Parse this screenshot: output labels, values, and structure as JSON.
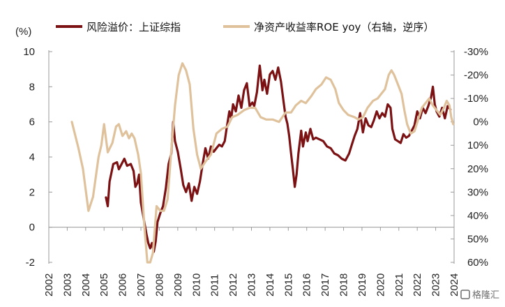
{
  "chart_data": {
    "type": "line",
    "unit_left": "(%)",
    "y_left": {
      "min": -2,
      "max": 10,
      "ticks": [
        -2,
        0,
        2,
        4,
        6,
        8,
        10
      ],
      "tick_labels": [
        "-2",
        "0",
        "2",
        "4",
        "6",
        "8",
        "10"
      ]
    },
    "y_right": {
      "inverted": true,
      "min": -30,
      "max": 60,
      "ticks": [
        -30,
        -20,
        -10,
        0,
        10,
        20,
        30,
        40,
        50,
        60
      ],
      "tick_labels": [
        "-30%",
        "-20%",
        "-10%",
        "0%",
        "10%",
        "20%",
        "30%",
        "40%",
        "50%",
        "60%"
      ]
    },
    "x": {
      "min": 2002,
      "max": 2024,
      "tick_labels": [
        "2002",
        "2003",
        "2004",
        "2005",
        "2006",
        "2007",
        "2008",
        "2009",
        "2010",
        "2011",
        "2012",
        "2013",
        "2014",
        "2015",
        "2016",
        "2017",
        "2018",
        "2019",
        "2020",
        "2021",
        "2022",
        "2023",
        "2024"
      ]
    },
    "legend_position": "top",
    "series": [
      {
        "name": "风险溢价：上证综指",
        "axis": "left",
        "color": "#7b1113",
        "points": [
          [
            2005.1,
            1.7
          ],
          [
            2005.2,
            1.2
          ],
          [
            2005.3,
            2.6
          ],
          [
            2005.5,
            3.6
          ],
          [
            2005.7,
            3.7
          ],
          [
            2005.8,
            3.3
          ],
          [
            2005.95,
            3.6
          ],
          [
            2006.1,
            3.9
          ],
          [
            2006.25,
            3.5
          ],
          [
            2006.45,
            3.6
          ],
          [
            2006.6,
            3.2
          ],
          [
            2006.7,
            2.3
          ],
          [
            2006.8,
            2.5
          ],
          [
            2006.9,
            3.0
          ],
          [
            2007.0,
            1.4
          ],
          [
            2007.1,
            0.8
          ],
          [
            2007.2,
            0.2
          ],
          [
            2007.3,
            -0.4
          ],
          [
            2007.4,
            -0.9
          ],
          [
            2007.5,
            -1.2
          ],
          [
            2007.6,
            -0.9
          ],
          [
            2007.7,
            -1.4
          ],
          [
            2007.8,
            -0.8
          ],
          [
            2007.9,
            0.3
          ],
          [
            2008.05,
            0.8
          ],
          [
            2008.2,
            1.2
          ],
          [
            2008.35,
            2.2
          ],
          [
            2008.5,
            3.6
          ],
          [
            2008.65,
            4.2
          ],
          [
            2008.75,
            6.0
          ],
          [
            2008.85,
            4.9
          ],
          [
            2009.0,
            4.3
          ],
          [
            2009.15,
            3.4
          ],
          [
            2009.3,
            2.4
          ],
          [
            2009.45,
            2.0
          ],
          [
            2009.6,
            2.5
          ],
          [
            2009.75,
            1.5
          ],
          [
            2009.9,
            2.3
          ],
          [
            2010.05,
            1.9
          ],
          [
            2010.2,
            2.6
          ],
          [
            2010.35,
            3.6
          ],
          [
            2010.5,
            4.5
          ],
          [
            2010.65,
            3.9
          ],
          [
            2010.8,
            4.6
          ],
          [
            2010.95,
            4.3
          ],
          [
            2011.1,
            4.5
          ],
          [
            2011.25,
            4.7
          ],
          [
            2011.4,
            4.6
          ],
          [
            2011.55,
            4.9
          ],
          [
            2011.65,
            5.6
          ],
          [
            2011.8,
            6.6
          ],
          [
            2011.9,
            6.2
          ],
          [
            2012.0,
            7.0
          ],
          [
            2012.15,
            6.6
          ],
          [
            2012.3,
            7.5
          ],
          [
            2012.45,
            6.8
          ],
          [
            2012.6,
            7.8
          ],
          [
            2012.75,
            8.2
          ],
          [
            2012.9,
            6.9
          ],
          [
            2013.05,
            7.1
          ],
          [
            2013.15,
            6.9
          ],
          [
            2013.3,
            7.7
          ],
          [
            2013.45,
            9.2
          ],
          [
            2013.6,
            7.8
          ],
          [
            2013.7,
            8.4
          ],
          [
            2013.85,
            7.6
          ],
          [
            2014.0,
            8.7
          ],
          [
            2014.15,
            8.9
          ],
          [
            2014.3,
            8.4
          ],
          [
            2014.45,
            9.1
          ],
          [
            2014.6,
            8.3
          ],
          [
            2014.75,
            7.1
          ],
          [
            2014.85,
            6.3
          ],
          [
            2014.95,
            5.9
          ],
          [
            2015.05,
            5.2
          ],
          [
            2015.15,
            4.2
          ],
          [
            2015.25,
            3.3
          ],
          [
            2015.35,
            2.3
          ],
          [
            2015.45,
            3.0
          ],
          [
            2015.55,
            4.2
          ],
          [
            2015.7,
            5.5
          ],
          [
            2015.8,
            4.6
          ],
          [
            2015.95,
            5.4
          ],
          [
            2016.05,
            4.9
          ],
          [
            2016.2,
            5.6
          ],
          [
            2016.35,
            5.0
          ],
          [
            2016.5,
            5.1
          ],
          [
            2016.7,
            5.0
          ],
          [
            2016.9,
            4.9
          ],
          [
            2017.1,
            4.6
          ],
          [
            2017.3,
            4.5
          ],
          [
            2017.5,
            4.2
          ],
          [
            2017.7,
            4.1
          ],
          [
            2017.9,
            3.9
          ],
          [
            2018.1,
            3.8
          ],
          [
            2018.3,
            4.2
          ],
          [
            2018.45,
            4.7
          ],
          [
            2018.6,
            5.2
          ],
          [
            2018.75,
            5.6
          ],
          [
            2018.9,
            6.5
          ],
          [
            2019.05,
            5.4
          ],
          [
            2019.2,
            6.2
          ],
          [
            2019.35,
            5.8
          ],
          [
            2019.5,
            5.7
          ],
          [
            2019.65,
            6.1
          ],
          [
            2019.8,
            6.6
          ],
          [
            2019.95,
            6.2
          ],
          [
            2020.1,
            6.5
          ],
          [
            2020.25,
            6.3
          ],
          [
            2020.4,
            7.0
          ],
          [
            2020.55,
            6.8
          ],
          [
            2020.65,
            5.6
          ],
          [
            2020.8,
            5.0
          ],
          [
            2020.95,
            4.9
          ],
          [
            2021.1,
            4.8
          ],
          [
            2021.25,
            5.3
          ],
          [
            2021.4,
            5.1
          ],
          [
            2021.55,
            5.2
          ],
          [
            2021.7,
            5.5
          ],
          [
            2021.85,
            5.8
          ],
          [
            2022.0,
            6.6
          ],
          [
            2022.15,
            6.2
          ],
          [
            2022.3,
            6.8
          ],
          [
            2022.45,
            6.5
          ],
          [
            2022.6,
            6.9
          ],
          [
            2022.75,
            7.4
          ],
          [
            2022.85,
            8.0
          ],
          [
            2022.95,
            7.0
          ],
          [
            2023.05,
            6.6
          ],
          [
            2023.2,
            6.3
          ],
          [
            2023.35,
            6.8
          ],
          [
            2023.5,
            6.2
          ],
          [
            2023.65,
            6.9
          ],
          [
            2023.8,
            6.7
          ]
        ]
      },
      {
        "name": "净资产收益率ROE yoy（右轴，逆序）",
        "axis": "right",
        "color": "#dfc29c",
        "points": [
          [
            2003.25,
            0
          ],
          [
            2003.6,
            11
          ],
          [
            2003.85,
            20
          ],
          [
            2004.15,
            38
          ],
          [
            2004.4,
            32
          ],
          [
            2004.7,
            15
          ],
          [
            2004.85,
            10
          ],
          [
            2005.0,
            1
          ],
          [
            2005.2,
            13
          ],
          [
            2005.45,
            9
          ],
          [
            2005.65,
            2
          ],
          [
            2005.8,
            1
          ],
          [
            2006.0,
            6
          ],
          [
            2006.2,
            4
          ],
          [
            2006.35,
            7
          ],
          [
            2006.5,
            5
          ],
          [
            2006.65,
            7
          ],
          [
            2006.85,
            14
          ],
          [
            2007.0,
            22
          ],
          [
            2007.2,
            46
          ],
          [
            2007.35,
            60
          ],
          [
            2007.5,
            60
          ],
          [
            2007.65,
            56
          ],
          [
            2007.85,
            36
          ],
          [
            2008.05,
            38
          ],
          [
            2008.25,
            38
          ],
          [
            2008.45,
            33
          ],
          [
            2008.65,
            12
          ],
          [
            2008.85,
            -7
          ],
          [
            2009.05,
            -20
          ],
          [
            2009.25,
            -25
          ],
          [
            2009.45,
            -22
          ],
          [
            2009.65,
            -16
          ],
          [
            2009.85,
            3
          ],
          [
            2010.05,
            14
          ],
          [
            2010.25,
            20
          ],
          [
            2010.5,
            17
          ],
          [
            2010.8,
            14
          ],
          [
            2011.1,
            5
          ],
          [
            2011.4,
            3
          ],
          [
            2011.7,
            2
          ],
          [
            2011.95,
            -2
          ],
          [
            2012.25,
            -3
          ],
          [
            2012.6,
            -5
          ],
          [
            2012.9,
            -6
          ],
          [
            2013.2,
            -6
          ],
          [
            2013.5,
            -2
          ],
          [
            2013.8,
            -1
          ],
          [
            2014.15,
            -1
          ],
          [
            2014.5,
            0
          ],
          [
            2014.85,
            -4
          ],
          [
            2015.15,
            -4
          ],
          [
            2015.4,
            -7
          ],
          [
            2015.7,
            -9
          ],
          [
            2015.95,
            -8
          ],
          [
            2016.25,
            -11
          ],
          [
            2016.5,
            -14
          ],
          [
            2016.8,
            -16
          ],
          [
            2017.05,
            -19
          ],
          [
            2017.3,
            -18
          ],
          [
            2017.55,
            -14
          ],
          [
            2017.75,
            -8
          ],
          [
            2018.0,
            -5
          ],
          [
            2018.25,
            -3
          ],
          [
            2018.6,
            -2
          ],
          [
            2018.8,
            -1
          ],
          [
            2019.05,
            -2
          ],
          [
            2019.3,
            -6
          ],
          [
            2019.6,
            -9
          ],
          [
            2019.85,
            -10
          ],
          [
            2020.05,
            -12
          ],
          [
            2020.25,
            -14
          ],
          [
            2020.45,
            -20
          ],
          [
            2020.6,
            -22
          ],
          [
            2020.75,
            -20
          ],
          [
            2020.95,
            -16
          ],
          [
            2021.15,
            -12
          ],
          [
            2021.3,
            -5
          ],
          [
            2021.45,
            1
          ],
          [
            2021.65,
            5
          ],
          [
            2021.85,
            4
          ],
          [
            2022.05,
            -1
          ],
          [
            2022.25,
            -6
          ],
          [
            2022.45,
            -8
          ],
          [
            2022.65,
            -10
          ],
          [
            2022.85,
            -7
          ],
          [
            2023.05,
            -5
          ],
          [
            2023.25,
            -3
          ],
          [
            2023.45,
            -6
          ],
          [
            2023.6,
            -9
          ],
          [
            2023.75,
            -7
          ],
          [
            2023.85,
            -2
          ],
          [
            2023.95,
            1
          ]
        ]
      }
    ]
  },
  "watermark": "格隆汇"
}
